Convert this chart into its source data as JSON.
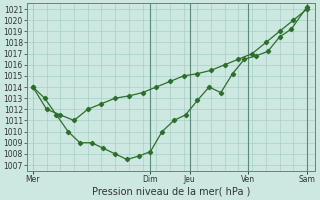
{
  "xlabel": "Pression niveau de la mer( hPa )",
  "ylim": [
    1006.5,
    1021.5
  ],
  "yticks": [
    1007,
    1008,
    1009,
    1010,
    1011,
    1012,
    1013,
    1014,
    1015,
    1016,
    1017,
    1018,
    1019,
    1020,
    1021
  ],
  "xtick_labels": [
    "Mer",
    "",
    "Dim",
    "Jeu",
    "",
    "Ven",
    "",
    "Sam"
  ],
  "xtick_positions": [
    0,
    1,
    3,
    4,
    5,
    5.5,
    6.2,
    7
  ],
  "vline_x": [
    3,
    4,
    5.5,
    7
  ],
  "background_color": "#cce8e0",
  "grid_color": "#a0c8c0",
  "line_color": "#2d6e2d",
  "line1_x": [
    0,
    0.35,
    0.7,
    1.05,
    1.4,
    1.75,
    2.1,
    2.45,
    2.8,
    3.15,
    3.5,
    3.85,
    4.2,
    4.55,
    4.9,
    5.25,
    5.6,
    5.95,
    6.3,
    6.65,
    7.0
  ],
  "line1_y": [
    1014,
    1012,
    1011.5,
    1011,
    1012,
    1012.5,
    1013,
    1013.2,
    1013.5,
    1014,
    1014.5,
    1015,
    1015.2,
    1015.5,
    1016,
    1016.5,
    1017,
    1018,
    1019,
    1020,
    1021
  ],
  "line2_x": [
    0,
    0.3,
    0.6,
    0.9,
    1.2,
    1.5,
    1.8,
    2.1,
    2.4,
    2.7,
    3.0,
    3.3,
    3.6,
    3.9,
    4.2,
    4.5,
    4.8,
    5.1,
    5.4,
    5.7,
    6.0,
    6.3,
    6.6,
    7.0
  ],
  "line2_y": [
    1014,
    1013,
    1011.5,
    1010,
    1009,
    1009,
    1008.5,
    1008,
    1007.5,
    1007.8,
    1008.2,
    1010,
    1011,
    1011.5,
    1012.8,
    1014,
    1013.5,
    1015.2,
    1016.5,
    1016.8,
    1017.2,
    1018.5,
    1019.2,
    1021.2
  ],
  "xlim": [
    -0.15,
    7.2
  ],
  "ylabel_fontsize": 5.5,
  "xlabel_fontsize": 7,
  "tick_fontsize": 5.5
}
